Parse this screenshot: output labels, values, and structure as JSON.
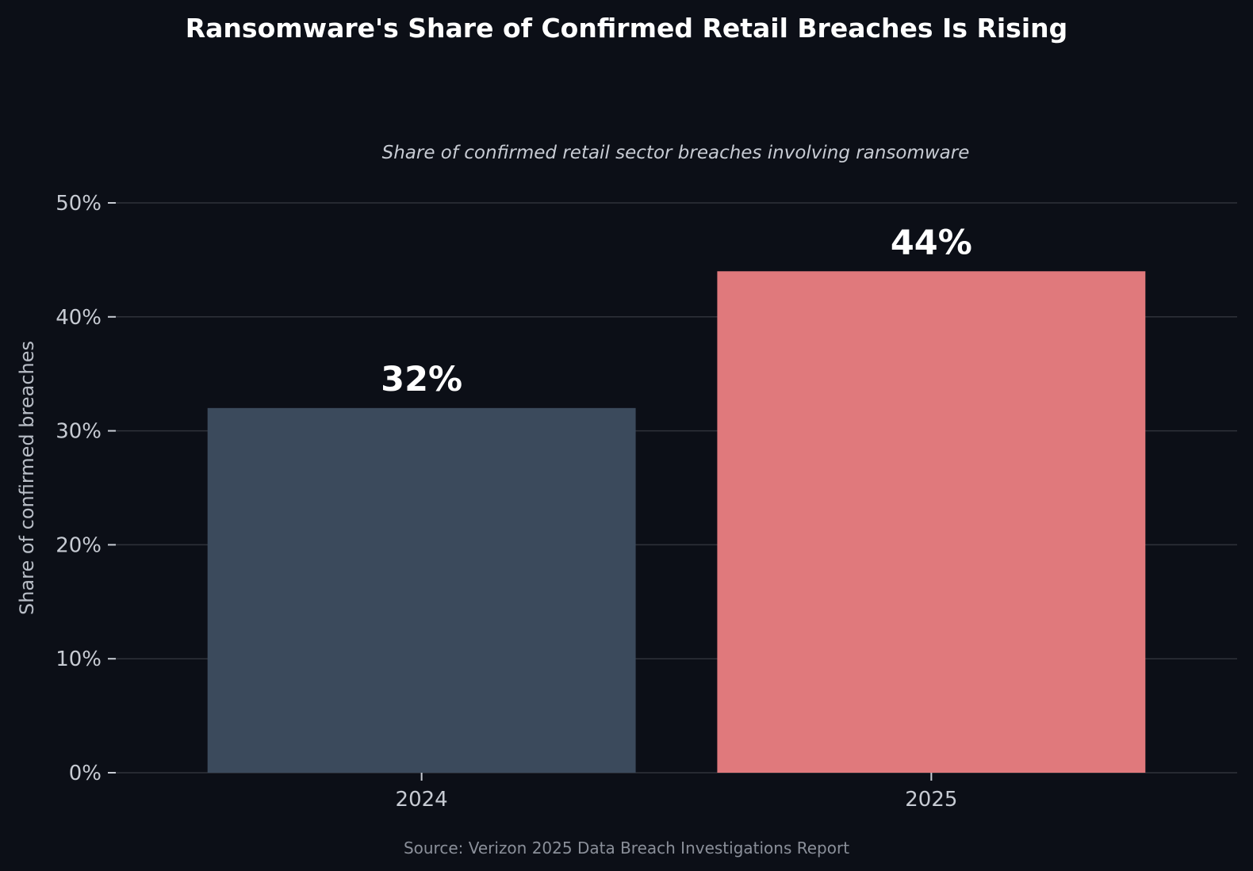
{
  "chart_data": {
    "type": "bar",
    "title": "Ransomware's Share of Confirmed Retail Breaches Is Rising",
    "subtitle": "Share of confirmed retail sector breaches involving ransomware",
    "xlabel": "",
    "ylabel": "Share of confirmed breaches",
    "categories": [
      "2024",
      "2025"
    ],
    "values": [
      32,
      44
    ],
    "value_labels": [
      "32%",
      "44%"
    ],
    "bar_colors": [
      "#3b4a5c",
      "#e0797c"
    ],
    "ylim": [
      0,
      50
    ],
    "yticks": [
      0,
      10,
      20,
      30,
      40,
      50
    ],
    "ytick_labels": [
      "0%",
      "10%",
      "20%",
      "30%",
      "40%",
      "50%"
    ],
    "grid": true,
    "legend": "none",
    "source": "Source: Verizon 2025 Data Breach Investigations Report"
  },
  "colors": {
    "background": "#0c0f17",
    "gridline": "#2f323a",
    "tick": "#c7cbd3"
  }
}
